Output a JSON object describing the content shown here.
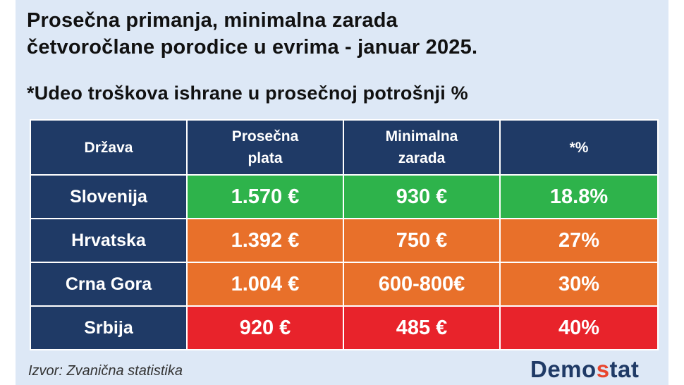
{
  "title_lines": [
    "Prosečna primanja, minimalna zarada",
    "četvoročlane porodice u evrima - januar 2025."
  ],
  "subtitle": "*Udeo troškova ishrane u prosečnoj potrošnji %",
  "colors": {
    "header_bg": "#1f3a66",
    "card_bg": "#dde8f6",
    "green": "#2eb34b",
    "orange": "#e8702a",
    "red": "#e8232b",
    "logo": "#1f3a66",
    "logo_accent": "#e8452e"
  },
  "chart_data": {
    "type": "table",
    "title": "Prosečna primanja, minimalna zarada četvoročlane porodice u evrima - januar 2025.",
    "subtitle": "*Udeo troškova ishrane u prosečnoj potrošnji %",
    "columns": [
      {
        "lines": [
          "Država"
        ]
      },
      {
        "lines": [
          "Prosečna",
          "plata"
        ]
      },
      {
        "lines": [
          "Minimalna",
          "zarada"
        ]
      },
      {
        "lines": [
          "*%"
        ]
      }
    ],
    "rows": [
      {
        "country": "Slovenija",
        "avg_salary": "1.570 €",
        "min_wage": "930 €",
        "food_share": "18.8%",
        "color": "green"
      },
      {
        "country": "Hrvatska",
        "avg_salary": "1.392 €",
        "min_wage": "750 €",
        "food_share": "27%",
        "color": "orange"
      },
      {
        "country": "Crna Gora",
        "avg_salary": "1.004 €",
        "min_wage": "600-800€",
        "food_share": "30%",
        "color": "orange"
      },
      {
        "country": "Srbija",
        "avg_salary": "920 €",
        "min_wage": "485 €",
        "food_share": "40%",
        "color": "red"
      }
    ]
  },
  "source": "Izvor: Zvanična statistika",
  "logo": {
    "part1": "Demo",
    "accent": "s",
    "part2": "tat"
  }
}
